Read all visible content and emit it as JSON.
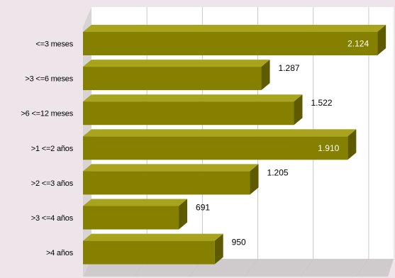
{
  "chart_data": {
    "type": "bar",
    "orientation": "horizontal",
    "style": "3d",
    "categories": [
      "<=3 meses",
      ">3 <=6 meses",
      ">6 <=12 meses",
      ">1 <=2 años",
      ">2 <=3 años",
      ">3 <=4 años",
      ">4 años"
    ],
    "values": [
      2124,
      1287,
      1522,
      1910,
      1205,
      691,
      950
    ],
    "value_labels": [
      "2.124",
      "1.287",
      "1.522",
      "1.910",
      "1.205",
      "691",
      "950"
    ],
    "value_label_colors": [
      "#ffffff",
      "#000000",
      "#000000",
      "#ffffff",
      "#000000",
      "#000000",
      "#000000"
    ],
    "xlim": [
      0,
      2200
    ],
    "grid": true,
    "legend": "none",
    "title": "",
    "xlabel": "",
    "ylabel": ""
  },
  "colors": {
    "bar_front": "#858000",
    "bar_top": "#a8a41e",
    "bar_side": "#5e5a00",
    "background": "#ede5ea",
    "plot_wall": "#ffffff",
    "plot_floor": "#c9c5c7",
    "gridline": "#c8c8c8"
  }
}
